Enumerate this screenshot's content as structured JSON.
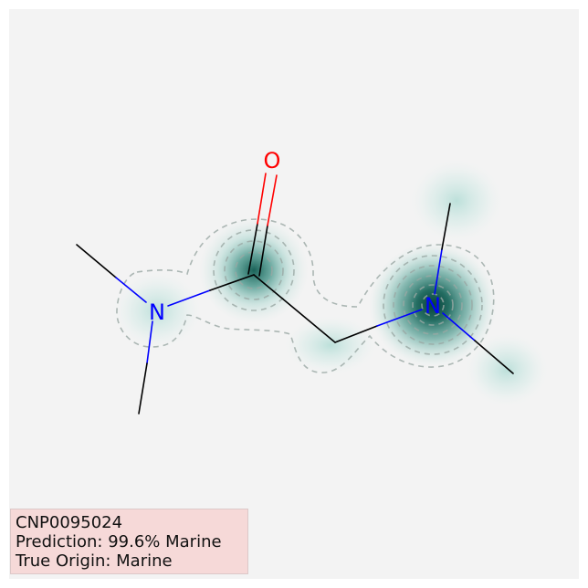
{
  "molecule": {
    "atoms": [
      {
        "symbol": "O",
        "color": "#ff0000"
      },
      {
        "symbol": "N",
        "color": "#0000ff"
      },
      {
        "symbol": "N",
        "color": "#0000ff"
      }
    ]
  },
  "info": {
    "compound_id": "CNP0095024",
    "prediction": "Prediction: 99.6% Marine",
    "true_origin": "True Origin: Marine"
  },
  "colors": {
    "background": "#f3f3f3",
    "heatmap": "#0d5e52",
    "contour": "#9aa8a4",
    "bond": "#000000",
    "nitrogen": "#0000ff",
    "oxygen": "#ff0000",
    "info_box": "#f6d9d8"
  }
}
